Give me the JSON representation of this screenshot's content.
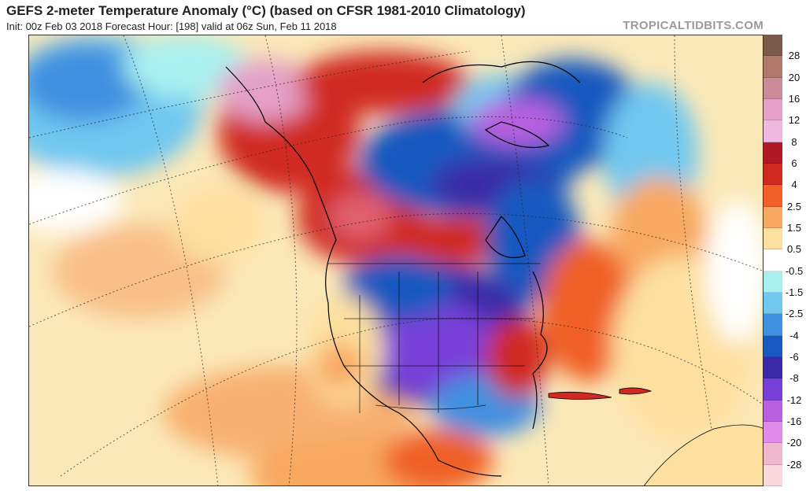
{
  "header": {
    "title": "GEFS 2-meter Temperature Anomaly (°C) (based on CFSR 1981-2010 Climatology)",
    "subtitle": "Init: 00z Feb 03 2018   Forecast Hour: [198]   valid at 06z Sun, Feb 11 2018",
    "brand": "TROPICALTIDBITS.COM"
  },
  "map": {
    "region": "North America",
    "variable": "2-meter temperature anomaly"
  },
  "colorbar": {
    "labels": [
      "28",
      "20",
      "16",
      "12",
      "8",
      "6",
      "4",
      "2.5",
      "1.5",
      "0.5",
      "-0.5",
      "-1.5",
      "-2.5",
      "-4",
      "-6",
      "-8",
      "-12",
      "-16",
      "-20",
      "-28"
    ],
    "colors": [
      "#7a5a4a",
      "#b07868",
      "#c98a9a",
      "#e4a0c8",
      "#f0b8e0",
      "#b01828",
      "#d02a20",
      "#f06028",
      "#f8a860",
      "#fde0a0",
      "#ffffff",
      "#a8f0f0",
      "#70c8f0",
      "#4090e0",
      "#1858c0",
      "#3a2aa8",
      "#7840d8",
      "#b860e0",
      "#e08ce8",
      "#f0b8cc",
      "#f8d8dc"
    ],
    "_note": "21 color bins, labels sit at bin boundaries"
  }
}
